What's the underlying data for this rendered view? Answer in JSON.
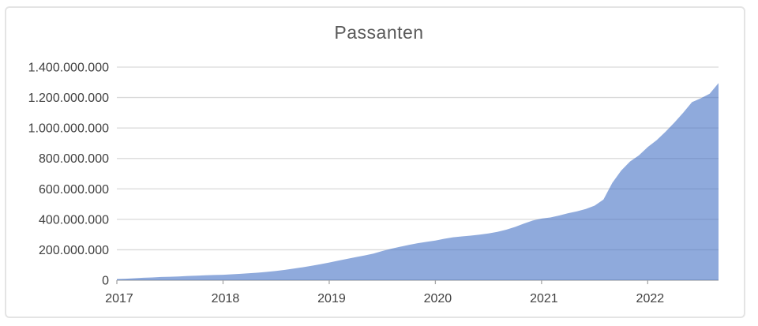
{
  "title": "Passanten",
  "colors": {
    "area_base": "#4472c4",
    "area_opacity": 0.6,
    "area_visual": "#8faadc",
    "gridline": "#d9d9d9",
    "axis_line": "#a6a6a6",
    "tick": "#a6a6a6",
    "axis_label": "#404040",
    "title": "#595959",
    "frame_border": "#e4e4e4",
    "background": "#ffffff"
  },
  "chart_data": {
    "type": "area",
    "title": "Passanten",
    "xlabel": "",
    "ylabel": "",
    "grid": true,
    "legend": "none",
    "unit": "millions",
    "frequency": "monthly",
    "start": "2017-01",
    "end": "2022-09",
    "ylim_millions": [
      0,
      1400
    ],
    "y_gridline_step_millions": 200,
    "y_tick_labels": [
      "0",
      "200.000.000",
      "400.000.000",
      "600.000.000",
      "800.000.000",
      "1.000.000.000",
      "1.200.000.000",
      "1.400.000.000"
    ],
    "x_tick_labels": [
      "2017",
      "2018",
      "2019",
      "2020",
      "2021",
      "2022"
    ],
    "x_ticks_every_months": 12,
    "series": [
      {
        "name": "Passanten",
        "values_millions": [
          8,
          10,
          13,
          16,
          18,
          21,
          23,
          25,
          28,
          30,
          32,
          34,
          36,
          39,
          42,
          46,
          50,
          55,
          61,
          68,
          76,
          85,
          95,
          105,
          116,
          128,
          140,
          152,
          163,
          175,
          192,
          207,
          220,
          232,
          243,
          252,
          261,
          272,
          282,
          288,
          293,
          299,
          307,
          318,
          332,
          350,
          372,
          392,
          405,
          412,
          425,
          440,
          452,
          468,
          490,
          530,
          640,
          720,
          780,
          820,
          875,
          920,
          975,
          1035,
          1100,
          1170,
          1195,
          1225,
          1295
        ]
      }
    ]
  },
  "layout_note": "single area chart, no legend, gridlines visible through semi-transparent fill"
}
